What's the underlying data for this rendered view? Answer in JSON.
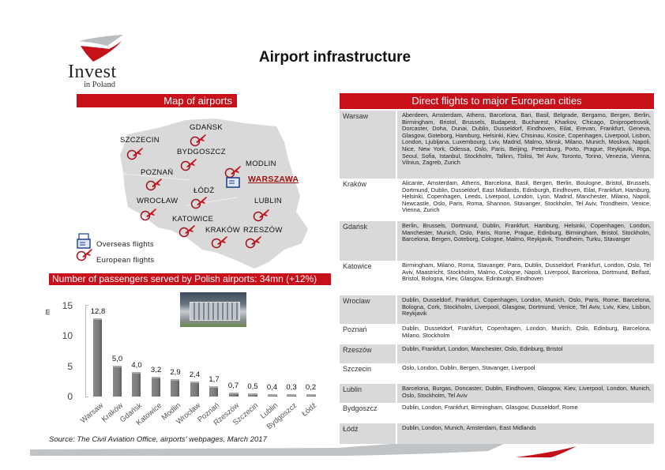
{
  "page": {
    "title": "Airport infrastructure"
  },
  "logo": {
    "name": "Invest",
    "sub": "in Poland",
    "colors": {
      "red": "#c8101a",
      "grey": "#b9bcc0"
    }
  },
  "map_section": {
    "header": "Map of airports",
    "cities": [
      {
        "name": "GDAŃSK",
        "capital": false
      },
      {
        "name": "SZCZECIN",
        "capital": false
      },
      {
        "name": "BYDGOSZCZ",
        "capital": false
      },
      {
        "name": "MODLIN",
        "capital": false
      },
      {
        "name": "POZNAŃ",
        "capital": false
      },
      {
        "name": "WARSZAWA",
        "capital": true
      },
      {
        "name": "ŁÓDŹ",
        "capital": false
      },
      {
        "name": "WROCŁAW",
        "capital": false
      },
      {
        "name": "LUBLIN",
        "capital": false
      },
      {
        "name": "KATOWICE",
        "capital": false
      },
      {
        "name": "KRAKÓW",
        "capital": false
      },
      {
        "name": "RZESZÓW",
        "capital": false
      }
    ],
    "legend": {
      "overseas": "Overseas flights",
      "european": "European flights"
    },
    "icons": {
      "overseas": "overseas-flight-icon",
      "european": "plane-icon"
    }
  },
  "passengers_section": {
    "header": "Number of passengers served by Polish airports: 34mn (+12%)"
  },
  "chart_data": {
    "type": "bar",
    "title": "Number of passengers served by Polish airports: 34mn (+12%)",
    "xlabel": "",
    "ylabel": "m",
    "ylim": [
      0,
      15
    ],
    "yticks": [
      "0",
      "5",
      "10",
      "15"
    ],
    "categories": [
      "Warsaw",
      "Kraków",
      "Gdańsk",
      "Katowice",
      "Modlin",
      "Wrocław",
      "Poznań",
      "Rzeszów",
      "Szczecin",
      "Lublin",
      "Bydgoszcz",
      "Łódź"
    ],
    "values": [
      12.8,
      5.0,
      4.0,
      3.2,
      2.9,
      2.4,
      1.7,
      0.7,
      0.5,
      0.4,
      0.3,
      0.2
    ],
    "value_labels": [
      "12,8",
      "5,0",
      "4,0",
      "3,2",
      "2,9",
      "2,4",
      "1,7",
      "0,7",
      "0,5",
      "0,4",
      "0,3",
      "0,2"
    ],
    "grid": false,
    "legend": null
  },
  "source": "Source: The Civil Aviation Office, airports' webpages, March 2017",
  "flights_section": {
    "header": "Direct flights to major European cities",
    "rows": [
      {
        "city": "Warsaw",
        "destinations": "Aberdeen, Amsterdam, Athens, Barcelona, Bari, Basil, Belgrade, Bergamo, Bergen, Berlin, Birmingham, Bristol, Brussels, Budapest, Bucharest, Kharkov, Chicago, Dnipropetrovsk, Dorcaster, Doha, Dunai, Dublin, Dusseldorf, Eindhoven, Eilat, Erevan, Frankfurt, Geneva, Glasgow, Goteborg, Hamburg, Helsinki, Kiev, Chisinau, Kosice, Copenhagen, Liverpool, Lisbon, London, Ljubljana, Luxembourg, Lviv, Madrid, Malmo, Minsk, Milano, Munich, Moskva, Napoli, Nice, New York, Odessa, Oslo, Paris, Beijing, Petersburg, Porto, Prague, Reykjavik, Riga, Seoul, Sofia, Istanbul, Stockholm, Tallinn, Tbilisi, Tel Aviv, Toronto, Torino, Venezia, Vienna, Vilnius, Zagreb, Zurich"
      },
      {
        "city": "Kraków",
        "destinations": "Alicante, Amsterdam, Athens, Barcelona, Basil, Bergen, Berlin, Boulogne, Bristol, Brussels, Dortmund, Dublin, Dusseldorf, East Midlands, Edinburgh, Eindhoven, Eilat, Frankfurt, Hamburg, Helsinki, Copenhagen, Leeds, Liverpool, London, Lyon, Madrid, Manchester, Milano, Napoli, Newcastle, Oslo, Paris, Roma, Shannon, Stavanger, Stockholm, Tel Aviv, Trondheim, Venice, Vienna, Zurich"
      },
      {
        "city": "Gdańsk",
        "destinations": "Berlin, Brussels, Dortmund, Dublin, Frankfurt, Hamburg, Helsinki, Copenhagen, London, Manchester, Munich, Oslo, Paris, Rome, Prague, Edinburg, Birmingham, Bristol, Stockholm, Barcelona, Bergen, Goteborg, Cologne, Malmo, Reykjavik, Trondheim, Turku, Stavanger"
      },
      {
        "city": "Katowice",
        "destinations": "Birmingham, Milano, Roma, Stavanger, Paris, Dublin, Dusseldorf, Frankfurt, London, Oslo, Tel Aviv, Maastricht, Stockholm, Malmo, Cologne, Napoli, Liverpool, Barcelona, Dortmund, Belfast, Bristol, Bologna, Kiev, Glasgow, Edinburgh, Eindhoven"
      },
      {
        "city": "Wroclaw",
        "destinations": "Dublin, Dusseldorf, Frankfurt, Copenhagen, London, Munich, Oslo, Paris, Rome, Barcelona, Bologna, Cork, Stockholm, Liverpool, Glasgow, Dortmund, Venice, Tel Aviv, Lviv, Kiev, Lisbon, Reykjavik"
      },
      {
        "city": "Poznań",
        "destinations": "Dublin, Dusseldorf, Frankfurt, Copenhagen, London, Munich, Oslo, Edinburg, Barcelona, Milano, Stockholm"
      },
      {
        "city": "Rzeszów",
        "destinations": "Dublin, Frankfurt, London, Manchester, Oslo, Edinburg, Bristol"
      },
      {
        "city": "Szczecin",
        "destinations": "Oslo, London, Dublin, Bergen, Stavanger, Liverpool"
      },
      {
        "city": "Lublin",
        "destinations": "Barcelona, Burgas, Doncaster, Dublin, Eindhoven, Glasgow, Kiev, Liverpool, London, Munich, Oslo, Stockholm, Tel Aviv"
      },
      {
        "city": "Bydgoszcz",
        "destinations": "Dublin, London, Frankfurt, Birmingham, Glasgow, Dusseldorf, Rome"
      },
      {
        "city": "Łódź",
        "destinations": "Dublin, London, Munich, Amsterdam, East Midlands"
      }
    ]
  }
}
